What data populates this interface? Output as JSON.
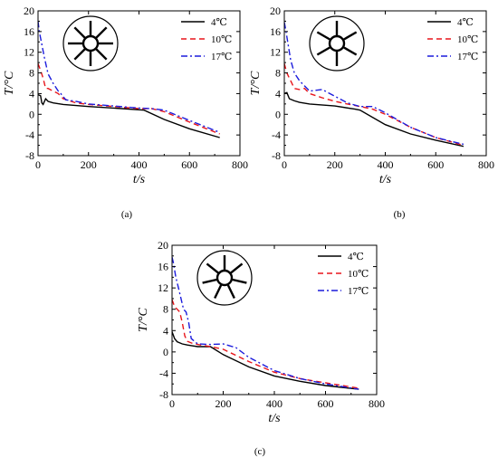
{
  "chart_data": [
    {
      "panel": "(a)",
      "type": "line",
      "xlabel": "t/s",
      "ylabel": "T/°C",
      "xlim": [
        0,
        800
      ],
      "ylim": [
        -8,
        20
      ],
      "xticks": [
        "0",
        "200",
        "400",
        "600",
        "800"
      ],
      "yticks": [
        "-8",
        "-4",
        "0",
        "4",
        "8",
        "12",
        "16",
        "20"
      ],
      "legend_position": "top-right",
      "inset_spokes": 8,
      "series": [
        {
          "name": "4℃",
          "color": "#000000",
          "dash": "solid",
          "x": [
            0,
            10,
            15,
            20,
            30,
            40,
            60,
            100,
            200,
            300,
            420,
            500,
            600,
            720
          ],
          "y": [
            3.8,
            3.6,
            2.2,
            1.9,
            3.0,
            2.5,
            2.2,
            1.9,
            1.5,
            1.2,
            0.8,
            -1.0,
            -2.8,
            -4.5
          ]
        },
        {
          "name": "10℃",
          "color": "#e8151b",
          "dash": "dash",
          "x": [
            0,
            10,
            20,
            30,
            40,
            60,
            80,
            100,
            150,
            200,
            300,
            400,
            450,
            500,
            600,
            720
          ],
          "y": [
            9.8,
            8.5,
            7.0,
            5.0,
            5.0,
            4.5,
            4.0,
            3.0,
            2.2,
            1.9,
            1.5,
            1.1,
            1.1,
            0.5,
            -1.5,
            -3.8
          ]
        },
        {
          "name": "17℃",
          "color": "#1c1cdc",
          "dash": "dashdot",
          "x": [
            0,
            5,
            15,
            25,
            40,
            60,
            80,
            90,
            110,
            150,
            200,
            300,
            400,
            450,
            500,
            600,
            720
          ],
          "y": [
            18.0,
            16.0,
            13.5,
            11.0,
            7.8,
            6.0,
            4.5,
            4.0,
            2.8,
            2.5,
            2.0,
            1.6,
            1.2,
            1.1,
            0.8,
            -1.2,
            -3.5
          ]
        }
      ]
    },
    {
      "panel": "(b)",
      "type": "line",
      "xlabel": "t/s",
      "ylabel": "T/°C",
      "xlim": [
        0,
        800
      ],
      "ylim": [
        -8,
        20
      ],
      "xticks": [
        "0",
        "200",
        "400",
        "600",
        "800"
      ],
      "yticks": [
        "-8",
        "-4",
        "0",
        "4",
        "8",
        "12",
        "16",
        "20"
      ],
      "legend_position": "top-right",
      "inset_spokes": 6,
      "series": [
        {
          "name": "4℃",
          "color": "#000000",
          "dash": "solid",
          "x": [
            0,
            10,
            20,
            40,
            60,
            100,
            200,
            280,
            300,
            400,
            500,
            600,
            710
          ],
          "y": [
            4.0,
            4.2,
            3.0,
            2.6,
            2.3,
            2.0,
            1.6,
            1.0,
            0.8,
            -2.0,
            -3.8,
            -5.0,
            -6.2
          ]
        },
        {
          "name": "10℃",
          "color": "#e8151b",
          "dash": "dash",
          "x": [
            0,
            10,
            20,
            40,
            60,
            80,
            100,
            150,
            200,
            250,
            300,
            350,
            400,
            500,
            600,
            710
          ],
          "y": [
            9.8,
            8.0,
            7.0,
            5.0,
            4.8,
            5.0,
            4.0,
            3.2,
            2.5,
            2.0,
            1.5,
            1.0,
            0.0,
            -2.5,
            -4.5,
            -6.0
          ]
        },
        {
          "name": "17℃",
          "color": "#1c1cdc",
          "dash": "dashdot",
          "x": [
            0,
            5,
            15,
            25,
            40,
            60,
            80,
            100,
            150,
            200,
            250,
            300,
            350,
            400,
            500,
            600,
            710
          ],
          "y": [
            17.8,
            16.5,
            13.5,
            10.5,
            8.0,
            6.5,
            5.5,
            4.5,
            4.8,
            3.5,
            2.2,
            1.5,
            1.5,
            0.3,
            -2.5,
            -4.5,
            -5.8
          ]
        }
      ]
    },
    {
      "panel": "(c)",
      "type": "line",
      "xlabel": "t/s",
      "ylabel": "T/°C",
      "xlim": [
        0,
        800
      ],
      "ylim": [
        -8,
        20
      ],
      "xticks": [
        "0",
        "200",
        "400",
        "600",
        "800"
      ],
      "yticks": [
        "-8",
        "-4",
        "0",
        "4",
        "8",
        "12",
        "16",
        "20"
      ],
      "legend_position": "top-right",
      "inset_spokes": 7,
      "series": [
        {
          "name": "4℃",
          "color": "#000000",
          "dash": "solid",
          "x": [
            0,
            10,
            20,
            40,
            60,
            100,
            150,
            200,
            300,
            400,
            500,
            600,
            730
          ],
          "y": [
            3.8,
            2.5,
            1.9,
            1.5,
            1.3,
            1.0,
            1.0,
            -0.5,
            -2.8,
            -4.5,
            -5.5,
            -6.3,
            -7.0
          ]
        },
        {
          "name": "10℃",
          "color": "#e8151b",
          "dash": "dash",
          "x": [
            0,
            10,
            20,
            30,
            40,
            50,
            60,
            80,
            100,
            150,
            200,
            300,
            400,
            500,
            600,
            730
          ],
          "y": [
            9.8,
            8.5,
            8.0,
            7.5,
            5.5,
            3.0,
            2.0,
            1.6,
            1.4,
            1.0,
            0.5,
            -1.8,
            -3.8,
            -5.0,
            -5.8,
            -6.8
          ]
        },
        {
          "name": "17℃",
          "color": "#1c1cdc",
          "dash": "dashdot",
          "x": [
            0,
            5,
            15,
            25,
            35,
            45,
            55,
            65,
            75,
            100,
            150,
            200,
            250,
            300,
            400,
            500,
            600,
            730
          ],
          "y": [
            17.8,
            16.8,
            14.0,
            12.0,
            10.0,
            8.0,
            7.5,
            5.5,
            2.5,
            1.5,
            1.4,
            1.5,
            0.8,
            -1.0,
            -3.5,
            -5.0,
            -6.0,
            -7.0
          ]
        }
      ]
    }
  ]
}
